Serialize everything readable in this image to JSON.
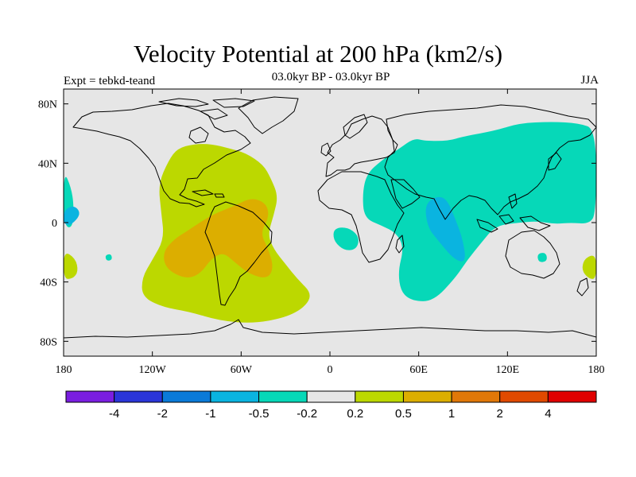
{
  "header": {
    "title": "Velocity Potential at 200 hPa (km2/s)",
    "subtitle": "03.0kyr BP - 03.0kyr BP",
    "left_string": "Expt = tebkd-teand",
    "right_string": "JJA"
  },
  "chart_data": {
    "type": "contour-map",
    "title": "Velocity Potential at 200 hPa (km2/s)",
    "subtitle": "03.0kyr BP - 03.0kyr BP",
    "experiment": "Expt = tebkd-teand",
    "season": "JJA",
    "projection": "cylindrical-equidistant",
    "lon_range": [
      -180,
      180
    ],
    "lat_range": [
      -90,
      90
    ],
    "x_ticks": [
      {
        "lon": -180,
        "label": "180"
      },
      {
        "lon": -120,
        "label": "120W"
      },
      {
        "lon": -60,
        "label": "60W"
      },
      {
        "lon": 0,
        "label": "0"
      },
      {
        "lon": 60,
        "label": "60E"
      },
      {
        "lon": 120,
        "label": "120E"
      },
      {
        "lon": 180,
        "label": "180"
      }
    ],
    "y_ticks": [
      {
        "lat": 80,
        "label": "80N"
      },
      {
        "lat": 40,
        "label": "40N"
      },
      {
        "lat": 0,
        "label": "0"
      },
      {
        "lat": -40,
        "label": "40S"
      },
      {
        "lat": -80,
        "label": "80S"
      }
    ],
    "levels": [
      "-4",
      "-2",
      "-1",
      "-0.5",
      "-0.2",
      "0.2",
      "0.5",
      "1",
      "2",
      "4"
    ],
    "colors": [
      "#7a1ee0",
      "#2a35d8",
      "#0a7ad8",
      "#0ab4e0",
      "#06d8b8",
      "#e6e6e6",
      "#bcd800",
      "#dcae00",
      "#e07808",
      "#e04a00",
      "#e00000"
    ],
    "regions": [
      {
        "name": "Americas-Atlantic positive",
        "bin": "0.2 to 0.5",
        "color": "#bcd800",
        "outline": [
          [
            -109,
            42
          ],
          [
            -103,
            50
          ],
          [
            -92,
            53
          ],
          [
            -80,
            53
          ],
          [
            -68,
            50
          ],
          [
            -57,
            47
          ],
          [
            -45,
            39
          ],
          [
            -40,
            30
          ],
          [
            -35,
            18
          ],
          [
            -38,
            5
          ],
          [
            -42,
            -8
          ],
          [
            -38,
            -18
          ],
          [
            -30,
            -28
          ],
          [
            -22,
            -38
          ],
          [
            -12,
            -48
          ],
          [
            -17,
            -57
          ],
          [
            -30,
            -64
          ],
          [
            -52,
            -68
          ],
          [
            -75,
            -66
          ],
          [
            -95,
            -60
          ],
          [
            -113,
            -57
          ],
          [
            -127,
            -50
          ],
          [
            -127,
            -37
          ],
          [
            -120,
            -25
          ],
          [
            -112,
            -11
          ],
          [
            -114,
            7
          ],
          [
            -116,
            26
          ]
        ]
      },
      {
        "name": "South America positive",
        "bin": "0.5 to 1",
        "color": "#dcae00",
        "outline": [
          [
            -97,
            -6
          ],
          [
            -88,
            0
          ],
          [
            -78,
            6
          ],
          [
            -65,
            11
          ],
          [
            -53,
            17
          ],
          [
            -43,
            13
          ],
          [
            -41,
            4
          ],
          [
            -47,
            -7
          ],
          [
            -42,
            -17
          ],
          [
            -38,
            -30
          ],
          [
            -42,
            -38
          ],
          [
            -54,
            -35
          ],
          [
            -64,
            -27
          ],
          [
            -72,
            -20
          ],
          [
            -80,
            -24
          ],
          [
            -88,
            -35
          ],
          [
            -98,
            -38
          ],
          [
            -111,
            -31
          ],
          [
            -113,
            -20
          ],
          [
            -105,
            -11
          ]
        ]
      },
      {
        "name": "Indo-Pacific negative",
        "bin": "-0.5 to -0.2",
        "color": "#06d8b8",
        "outline": [
          [
            -173,
            11
          ],
          [
            -175,
            24
          ],
          [
            -180,
            35
          ],
          [
            -180,
            -2
          ],
          [
            -174,
            -4
          ]
        ],
        "notes": "western Pacific patch"
      },
      {
        "name": "Eurasia-Indian Ocean negative",
        "bin": "-0.5 to -0.2",
        "color": "#06d8b8",
        "outline": [
          [
            22,
            20
          ],
          [
            25,
            33
          ],
          [
            35,
            42
          ],
          [
            47,
            50
          ],
          [
            57,
            57
          ],
          [
            64,
            55
          ],
          [
            80,
            55
          ],
          [
            90,
            58
          ],
          [
            112,
            62
          ],
          [
            128,
            67
          ],
          [
            150,
            68
          ],
          [
            168,
            67
          ],
          [
            180,
            63
          ],
          [
            180,
            6
          ],
          [
            175,
            -1
          ],
          [
            163,
            0
          ],
          [
            152,
            -1
          ],
          [
            140,
            1
          ],
          [
            128,
            0
          ],
          [
            112,
            -2
          ],
          [
            102,
            -14
          ],
          [
            93,
            -25
          ],
          [
            85,
            -37
          ],
          [
            70,
            -53
          ],
          [
            56,
            -53
          ],
          [
            48,
            -47
          ],
          [
            46,
            -33
          ],
          [
            50,
            -17
          ],
          [
            45,
            -7
          ],
          [
            35,
            -2
          ],
          [
            23,
            3
          ]
        ]
      },
      {
        "name": "Indian Ocean negative",
        "bin": "-1 to -0.5",
        "color": "#0ab4e0",
        "outline": [
          [
            66,
            -3
          ],
          [
            64,
            12
          ],
          [
            72,
            18
          ],
          [
            79,
            16
          ],
          [
            85,
            2
          ],
          [
            90,
            -12
          ],
          [
            92,
            -27
          ],
          [
            84,
            -25
          ],
          [
            73,
            -12
          ]
        ]
      },
      {
        "name": "Pacific negative",
        "bin": "-1 to -0.5",
        "color": "#0ab4e0",
        "outline": [
          [
            -180,
            8
          ],
          [
            -173,
            12
          ],
          [
            -168,
            6
          ],
          [
            -175,
            -2
          ],
          [
            -180,
            -1
          ]
        ]
      },
      {
        "name": "South Atlantic negative",
        "bin": "-0.5 to -0.2",
        "color": "#06d8b8",
        "outline": [
          [
            6,
            -3
          ],
          [
            14,
            -4
          ],
          [
            20,
            -10
          ],
          [
            18,
            -18
          ],
          [
            10,
            -19
          ],
          [
            3,
            -13
          ],
          [
            2,
            -6
          ]
        ]
      },
      {
        "name": "Australia-west negative",
        "bin": "-0.5 to -0.2",
        "color": "#06d8b8",
        "outline": [
          [
            140,
            -21
          ],
          [
            146,
            -20
          ],
          [
            147,
            -26
          ],
          [
            141,
            -27
          ]
        ]
      },
      {
        "name": "East Pacific small negative",
        "bin": "-0.5 to -0.2",
        "color": "#06d8b8",
        "outline": [
          [
            -152,
            -22
          ],
          [
            -148,
            -21
          ],
          [
            -147,
            -25
          ],
          [
            -151,
            -26
          ]
        ]
      },
      {
        "name": "Date-line positive",
        "bin": "0.2 to 0.5",
        "color": "#bcd800",
        "outline": [
          [
            -180,
            -19
          ],
          [
            -172,
            -24
          ],
          [
            -170,
            -33
          ],
          [
            -174,
            -38
          ],
          [
            -180,
            -38
          ]
        ]
      },
      {
        "name": "Date-line east positive",
        "bin": "0.2 to 0.5",
        "color": "#bcd800",
        "outline": [
          [
            180,
            -21
          ],
          [
            172,
            -24
          ],
          [
            170,
            -32
          ],
          [
            175,
            -38
          ],
          [
            180,
            -38
          ]
        ]
      }
    ]
  }
}
